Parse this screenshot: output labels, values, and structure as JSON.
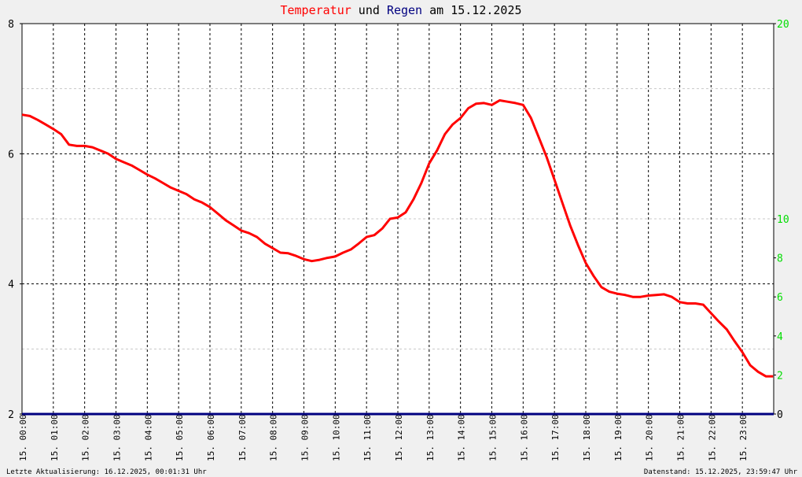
{
  "title": {
    "part1": "Temperatur",
    "part2": " und ",
    "part3": "Regen",
    "part4": " am 15.12.2025",
    "colors": {
      "temperature": "#ff0000",
      "rain": "#000080",
      "text": "#000000"
    }
  },
  "footer": {
    "left": "Letzte Aktualisierung: 16.12.2025, 00:01:31 Uhr",
    "right": "Datenstand: 15.12.2025, 23:59:47 Uhr"
  },
  "chart_data": {
    "type": "line",
    "xlim": [
      0,
      24
    ],
    "x_tick_labels": [
      "15. 00:00",
      "15. 01:00",
      "15. 02:00",
      "15. 03:00",
      "15. 04:00",
      "15. 05:00",
      "15. 06:00",
      "15. 07:00",
      "15. 08:00",
      "15. 09:00",
      "15. 10:00",
      "15. 11:00",
      "15. 12:00",
      "15. 13:00",
      "15. 14:00",
      "15. 15:00",
      "15. 16:00",
      "15. 17:00",
      "15. 18:00",
      "15. 19:00",
      "15. 20:00",
      "15. 21:00",
      "15. 22:00",
      "15. 23:00"
    ],
    "y_left": {
      "lim": [
        2,
        8
      ],
      "ticks": [
        2,
        4,
        6,
        8
      ],
      "color": "#000000"
    },
    "y_right": {
      "lim": [
        0,
        20
      ],
      "ticks": [
        "0",
        "2",
        "4",
        "6",
        "8",
        "10",
        "20"
      ],
      "tick_values": [
        0,
        2,
        4,
        6,
        8,
        10,
        20
      ],
      "color": "#00dd00",
      "zero_color": "#000000"
    },
    "grid": true,
    "series": [
      {
        "name": "Temperatur",
        "axis": "left",
        "color": "#ff0000",
        "x": [
          0,
          0.25,
          0.5,
          0.75,
          1.0,
          1.25,
          1.5,
          1.75,
          2.0,
          2.25,
          2.5,
          2.75,
          3.0,
          3.25,
          3.5,
          3.75,
          4.0,
          4.25,
          4.5,
          4.75,
          5.0,
          5.25,
          5.5,
          5.75,
          6.0,
          6.25,
          6.5,
          6.75,
          7.0,
          7.25,
          7.5,
          7.75,
          8.0,
          8.25,
          8.5,
          8.75,
          9.0,
          9.25,
          9.5,
          9.75,
          10.0,
          10.25,
          10.5,
          10.75,
          11.0,
          11.25,
          11.5,
          11.75,
          12.0,
          12.25,
          12.5,
          12.75,
          13.0,
          13.25,
          13.5,
          13.75,
          14.0,
          14.25,
          14.5,
          14.75,
          15.0,
          15.25,
          15.5,
          15.75,
          16.0,
          16.25,
          16.5,
          16.75,
          17.0,
          17.25,
          17.5,
          17.75,
          18.0,
          18.25,
          18.5,
          18.75,
          19.0,
          19.25,
          19.5,
          19.75,
          20.0,
          20.25,
          20.5,
          20.75,
          21.0,
          21.25,
          21.5,
          21.75,
          22.0,
          22.25,
          22.5,
          22.75,
          23.0,
          23.25,
          23.5,
          23.75,
          23.98
        ],
        "y": [
          6.6,
          6.58,
          6.52,
          6.45,
          6.38,
          6.3,
          6.14,
          6.12,
          6.12,
          6.1,
          6.05,
          6.0,
          5.92,
          5.87,
          5.82,
          5.75,
          5.68,
          5.62,
          5.55,
          5.48,
          5.43,
          5.38,
          5.3,
          5.25,
          5.18,
          5.08,
          4.98,
          4.9,
          4.82,
          4.78,
          4.72,
          4.62,
          4.55,
          4.48,
          4.47,
          4.43,
          4.38,
          4.35,
          4.37,
          4.4,
          4.42,
          4.48,
          4.53,
          4.62,
          4.72,
          4.75,
          4.85,
          5.0,
          5.02,
          5.1,
          5.3,
          5.55,
          5.85,
          6.05,
          6.3,
          6.45,
          6.55,
          6.7,
          6.77,
          6.78,
          6.75,
          6.82,
          6.8,
          6.78,
          6.75,
          6.55,
          6.25,
          5.95,
          5.6,
          5.25,
          4.9,
          4.6,
          4.32,
          4.12,
          3.95,
          3.88,
          3.85,
          3.83,
          3.8,
          3.8,
          3.82,
          3.83,
          3.84,
          3.8,
          3.72,
          3.7,
          3.7,
          3.68,
          3.55,
          3.42,
          3.3,
          3.12,
          2.95,
          2.75,
          2.65,
          2.58,
          2.58
        ]
      },
      {
        "name": "Regen",
        "axis": "right",
        "color": "#000080",
        "x": [
          0,
          24
        ],
        "y": [
          0,
          0
        ]
      }
    ]
  }
}
